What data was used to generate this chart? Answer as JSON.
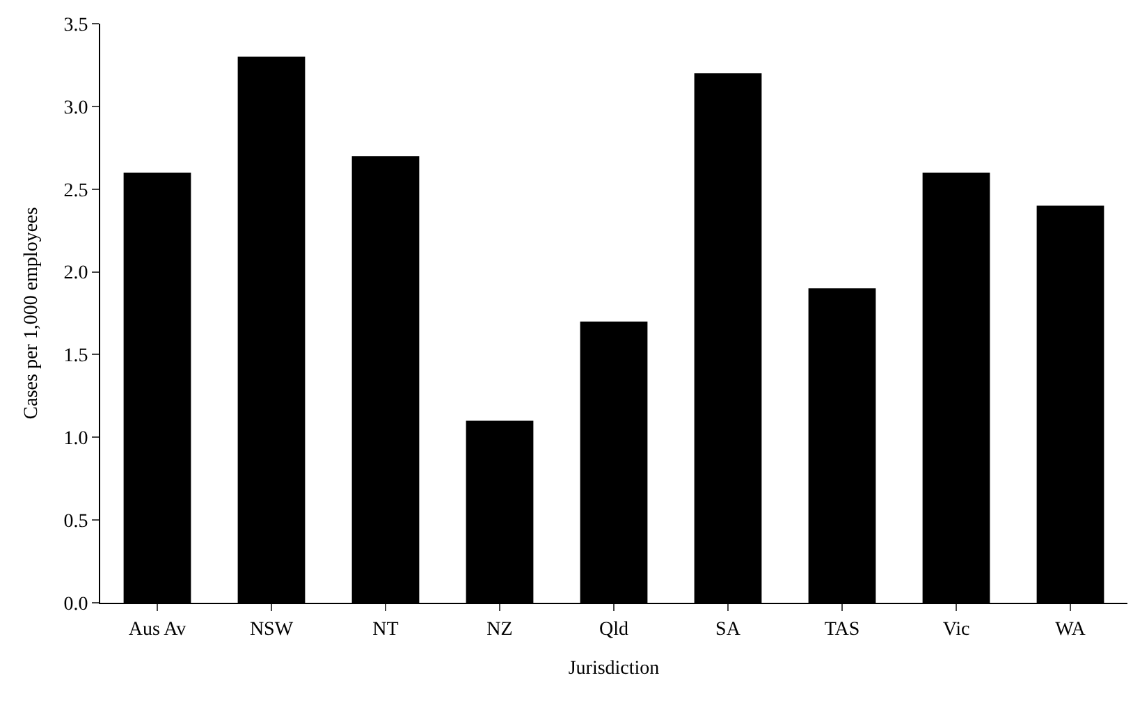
{
  "chart_data": {
    "type": "bar",
    "xlabel": "Jurisdiction",
    "ylabel": "Cases per 1,000 employees",
    "categories": [
      "Aus Av",
      "NSW",
      "NT",
      "NZ",
      "Qld",
      "SA",
      "TAS",
      "Vic",
      "WA"
    ],
    "values": [
      2.6,
      3.3,
      2.7,
      1.1,
      1.7,
      3.2,
      1.9,
      2.6,
      2.4
    ],
    "color": "#000000",
    "ylim": [
      0,
      3.5
    ],
    "yticks": [
      {
        "value": 0,
        "label": "0.0"
      },
      {
        "value": 0.5,
        "label": "0.5"
      },
      {
        "value": 1,
        "label": "1.0"
      },
      {
        "value": 1.5,
        "label": "1.5"
      },
      {
        "value": 2,
        "label": "2.0"
      },
      {
        "value": 2.5,
        "label": "2.5"
      },
      {
        "value": 3,
        "label": "3.0"
      },
      {
        "value": 3.5,
        "label": "3.5"
      }
    ],
    "legend": false
  }
}
